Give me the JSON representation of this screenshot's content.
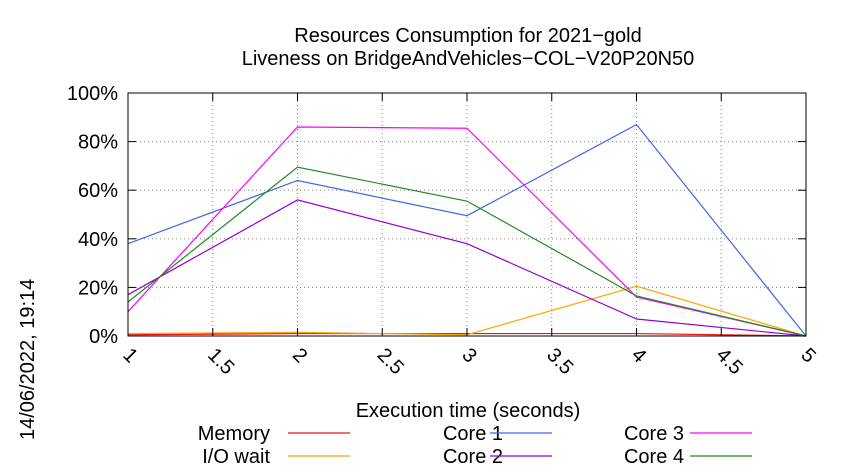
{
  "side_label": "14/06/2022, 19:14",
  "chart_data": {
    "type": "line",
    "title": "Resources Consumption for 2021−gold",
    "subtitle": "Liveness on BridgeAndVehicles−COL−V20P20N50",
    "xlabel": "Execution time (seconds)",
    "ylabel": "",
    "xlim": [
      1,
      5
    ],
    "ylim": [
      0,
      100
    ],
    "x_ticks": [
      "1",
      "1.5",
      "2",
      "2.5",
      "3",
      "3.5",
      "4",
      "4.5",
      "5"
    ],
    "y_ticks": [
      "0%",
      "20%",
      "40%",
      "60%",
      "80%",
      "100%"
    ],
    "grid": true,
    "legend_position": "bottom",
    "series": [
      {
        "name": "Memory",
        "color": "#e8180c",
        "x": [
          1,
          2,
          3,
          4,
          5
        ],
        "values": [
          0.5,
          1,
          1,
          1,
          0
        ]
      },
      {
        "name": "I/O wait",
        "color": "#ffa500",
        "x": [
          1,
          2,
          3,
          4,
          5
        ],
        "values": [
          1,
          1.5,
          0.5,
          20.5,
          0
        ]
      },
      {
        "name": "Core 1",
        "color": "#4169e1",
        "x": [
          1,
          2,
          3,
          4,
          5
        ],
        "values": [
          38,
          64,
          49.5,
          87,
          0
        ]
      },
      {
        "name": "Core 2",
        "color": "#9400d3",
        "x": [
          1,
          2,
          3,
          4,
          5
        ],
        "values": [
          17,
          56,
          38,
          7,
          0
        ]
      },
      {
        "name": "Core 3",
        "color": "#ff00ff",
        "x": [
          1,
          2,
          3,
          4,
          5
        ],
        "values": [
          10,
          86,
          85.5,
          16,
          0
        ]
      },
      {
        "name": "Core 4",
        "color": "#228b22",
        "x": [
          1,
          2,
          3,
          4,
          5
        ],
        "values": [
          14,
          69.5,
          55.5,
          16.5,
          0
        ]
      }
    ]
  }
}
